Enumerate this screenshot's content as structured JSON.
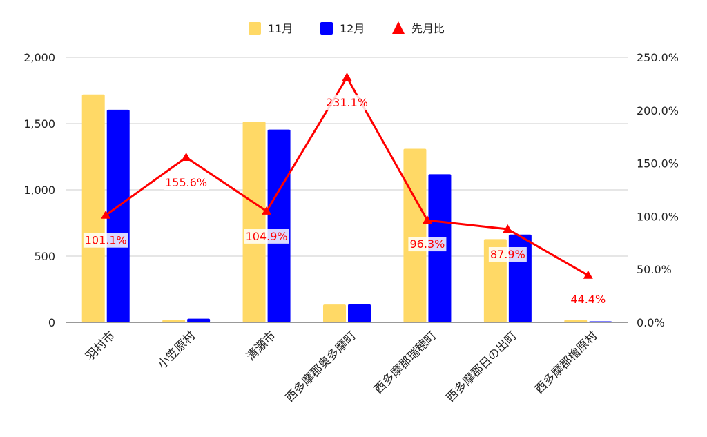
{
  "chart_data": {
    "type": "bar",
    "categories": [
      "羽村市",
      "小笠原村",
      "清瀬市",
      "西多摩郡奥多摩町",
      "西多摩郡瑞穂町",
      "西多摩郡日の出町",
      "西多摩郡檜原村"
    ],
    "series": [
      {
        "name": "11月",
        "type": "bar",
        "axis": "left",
        "color": "#FFD966",
        "values": [
          1720,
          18,
          1515,
          135,
          1310,
          628,
          18
        ]
      },
      {
        "name": "12月",
        "type": "bar",
        "axis": "left",
        "color": "#0000FF",
        "values": [
          1605,
          28,
          1455,
          137,
          1118,
          663,
          8
        ]
      },
      {
        "name": "先月比",
        "type": "line",
        "axis": "right",
        "color": "#FF0000",
        "marker": "triangle",
        "values": [
          101.1,
          155.6,
          104.9,
          231.1,
          96.3,
          87.9,
          44.4
        ],
        "labels": [
          "101.1%",
          "155.6%",
          "104.9%",
          "231.1%",
          "96.3%",
          "87.9%",
          "44.4%"
        ]
      }
    ],
    "y_left": {
      "ylim": [
        0,
        2000
      ],
      "ticks": [
        0,
        500,
        1000,
        1500,
        2000
      ],
      "tick_labels": [
        "0",
        "500",
        "1,000",
        "1,500",
        "2,000"
      ]
    },
    "y_right": {
      "ylim": [
        0,
        250
      ],
      "ticks": [
        0,
        50,
        100,
        150,
        200,
        250
      ],
      "tick_labels": [
        "0.0%",
        "50.0%",
        "100.0%",
        "150.0%",
        "200.0%",
        "250.0%"
      ]
    },
    "title": "",
    "xlabel": "",
    "ylabel": "",
    "grid": true,
    "legend_position": "top"
  }
}
